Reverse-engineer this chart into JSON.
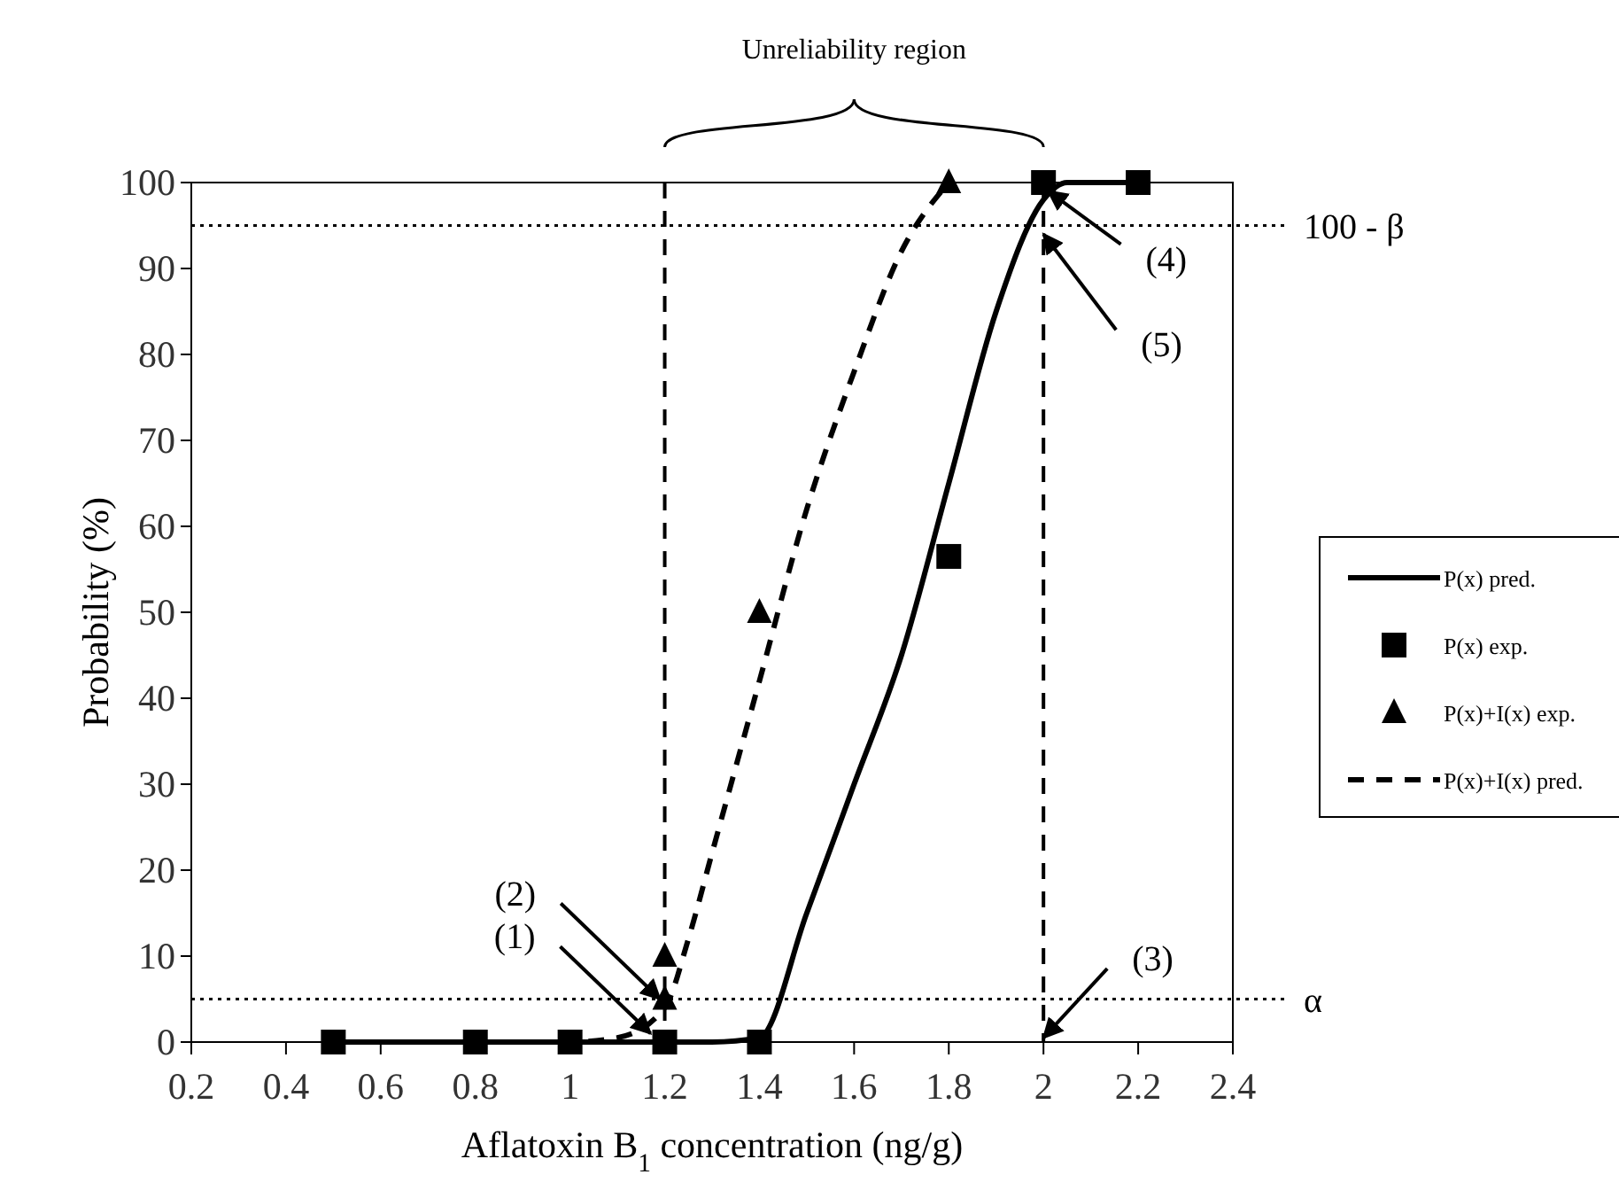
{
  "chart_data": {
    "type": "line",
    "xlabel": "Aflatoxin B$_{1}$ concentration (ng/g)",
    "ylabel": "Probability (%)",
    "xlim": [
      0.2,
      2.4
    ],
    "xticks": [
      0.2,
      0.4,
      0.6,
      0.8,
      1,
      1.2,
      1.4,
      1.6,
      1.8,
      2,
      2.2,
      2.4
    ],
    "ylim": [
      0,
      100
    ],
    "yticks": [
      0,
      10,
      20,
      30,
      40,
      50,
      60,
      70,
      80,
      90,
      100
    ],
    "grid": false,
    "legend": "right",
    "series": [
      {
        "name": "P(x) pred.",
        "color": "#000000",
        "marker": "none",
        "line_style": "solid",
        "x": [
          0.5,
          0.8,
          1,
          1.2,
          1.3,
          1.4,
          1.5,
          1.6,
          1.7,
          1.8,
          1.9,
          2,
          2.05,
          2.1,
          2.2
        ],
        "values": [
          0,
          0,
          0,
          0,
          0,
          0.5,
          15,
          30,
          45,
          65,
          85,
          98,
          100,
          100,
          100
        ]
      },
      {
        "name": "P(x) exp.",
        "type": "scatter",
        "color": "#000000",
        "marker": "square",
        "x": [
          0.5,
          0.8,
          1,
          1.2,
          1.4,
          1.8,
          2,
          2.2
        ],
        "values": [
          0,
          0,
          0,
          0,
          0,
          56.5,
          100,
          100
        ]
      },
      {
        "name": "P(x)+I(x) exp.",
        "type": "scatter",
        "color": "#000000",
        "marker": "triangle",
        "x": [
          1.2,
          1.2,
          1.4,
          1.8
        ],
        "values": [
          10,
          5,
          50,
          100
        ]
      },
      {
        "name": "P(x)+I(x) pred.",
        "color": "#000000",
        "marker": "none",
        "line_style": "dashed",
        "x": [
          0.5,
          1,
          1.1,
          1.2,
          1.25,
          1.3,
          1.4,
          1.5,
          1.6,
          1.7,
          1.8
        ],
        "values": [
          0,
          0,
          0.5,
          4,
          12,
          22,
          42,
          62,
          78,
          92,
          100
        ]
      }
    ],
    "ref_lines": [
      {
        "axis": "y",
        "value": 95,
        "label": "100 - β",
        "line_style": "dotted"
      },
      {
        "axis": "y",
        "value": 5,
        "label": "α",
        "line_style": "dotted"
      },
      {
        "axis": "x",
        "value": 1.2,
        "line_style": "dashed"
      },
      {
        "axis": "x",
        "value": 2,
        "line_style": "dashed"
      }
    ],
    "annotations": [
      "Unreliability region",
      {
        "text": "(1)",
        "x": 1.17,
        "y": 1
      },
      {
        "text": "(2)",
        "x": 1.19,
        "y": 5
      },
      {
        "text": "(3)",
        "x": 2,
        "y": 0.5
      },
      {
        "text": "(4)",
        "x": 2.01,
        "y": 99
      },
      {
        "text": "(5)",
        "x": 2,
        "y": 94
      }
    ]
  }
}
